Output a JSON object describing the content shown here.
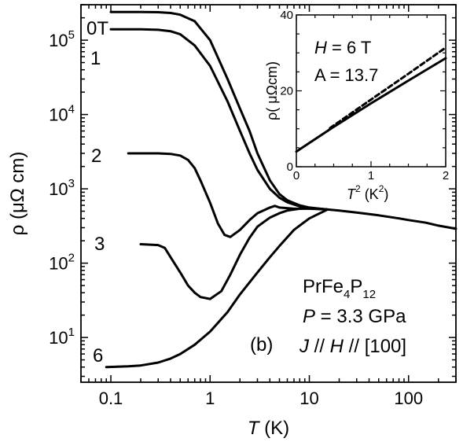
{
  "chart_data": [
    {
      "type": "line",
      "xlabel_var": "T",
      "xlabel_unit": "(K)",
      "ylabel": "ρ (μΩ cm)",
      "xscale": "log",
      "yscale": "log",
      "xlim": [
        0.05,
        300
      ],
      "ylim": [
        2.5,
        300000
      ],
      "x_ticks": [
        0.1,
        1,
        10,
        100
      ],
      "x_tick_labels": [
        "0.1",
        "1",
        "10",
        "100"
      ],
      "y_ticks": [
        10,
        100,
        1000,
        10000,
        100000
      ],
      "y_tick_labels": [
        {
          "base": "10",
          "exp": "1"
        },
        {
          "base": "10",
          "exp": "2"
        },
        {
          "base": "10",
          "exp": "3"
        },
        {
          "base": "10",
          "exp": "4"
        },
        {
          "base": "10",
          "exp": "5"
        }
      ],
      "series": [
        {
          "name": "0T",
          "points": [
            [
              0.1,
              240000
            ],
            [
              0.2,
              240000
            ],
            [
              0.3,
              238000
            ],
            [
              0.4,
              232000
            ],
            [
              0.5,
              220000
            ],
            [
              0.7,
              180000
            ],
            [
              1.0,
              100000
            ],
            [
              1.5,
              30000
            ],
            [
              2.0,
              12000
            ],
            [
              2.5,
              6000
            ],
            [
              3.0,
              3000
            ],
            [
              4.0,
              1300
            ],
            [
              5.0,
              850
            ],
            [
              6.0,
              700
            ],
            [
              8.0,
              600
            ],
            [
              10,
              560
            ],
            [
              15,
              530
            ]
          ]
        },
        {
          "name": "1",
          "points": [
            [
              0.1,
              140000
            ],
            [
              0.2,
              140000
            ],
            [
              0.3,
              138000
            ],
            [
              0.4,
              132000
            ],
            [
              0.5,
              120000
            ],
            [
              0.7,
              85000
            ],
            [
              1.0,
              45000
            ],
            [
              1.5,
              15000
            ],
            [
              2.0,
              6000
            ],
            [
              2.5,
              3000
            ],
            [
              3.0,
              1800
            ],
            [
              4.0,
              1000
            ],
            [
              5.0,
              760
            ],
            [
              6.0,
              660
            ],
            [
              8.0,
              580
            ],
            [
              10,
              550
            ],
            [
              15,
              530
            ]
          ]
        },
        {
          "name": "2",
          "points": [
            [
              0.15,
              3000
            ],
            [
              0.3,
              3000
            ],
            [
              0.4,
              2950
            ],
            [
              0.5,
              2800
            ],
            [
              0.6,
              2450
            ],
            [
              0.7,
              1900
            ],
            [
              0.8,
              1300
            ],
            [
              1.0,
              650
            ],
            [
              1.2,
              340
            ],
            [
              1.4,
              240
            ],
            [
              1.6,
              225
            ],
            [
              2.0,
              280
            ],
            [
              2.5,
              380
            ],
            [
              3.0,
              470
            ],
            [
              4.0,
              560
            ],
            [
              4.5,
              590
            ],
            [
              5.0,
              560
            ],
            [
              7,
              540
            ],
            [
              10,
              540
            ],
            [
              15,
              530
            ]
          ]
        },
        {
          "name": "3",
          "points": [
            [
              0.2,
              180
            ],
            [
              0.3,
              175
            ],
            [
              0.35,
              160
            ],
            [
              0.4,
              120
            ],
            [
              0.5,
              75
            ],
            [
              0.6,
              50
            ],
            [
              0.7,
              40
            ],
            [
              0.8,
              35
            ],
            [
              1.0,
              33
            ],
            [
              1.3,
              42
            ],
            [
              1.6,
              70
            ],
            [
              2.0,
              130
            ],
            [
              2.5,
              220
            ],
            [
              3.0,
              310
            ],
            [
              4.0,
              410
            ],
            [
              5.0,
              470
            ],
            [
              6.0,
              510
            ],
            [
              8.0,
              540
            ],
            [
              10,
              550
            ],
            [
              15,
              530
            ]
          ]
        },
        {
          "name": "6",
          "points": [
            [
              0.09,
              4.0
            ],
            [
              0.15,
              4.1
            ],
            [
              0.2,
              4.2
            ],
            [
              0.3,
              4.6
            ],
            [
              0.4,
              5.2
            ],
            [
              0.5,
              6.0
            ],
            [
              0.7,
              8.0
            ],
            [
              1.0,
              12
            ],
            [
              1.5,
              22
            ],
            [
              2.0,
              38
            ],
            [
              3.0,
              75
            ],
            [
              4.0,
              120
            ],
            [
              5.0,
              170
            ],
            [
              7.0,
              280
            ],
            [
              10,
              400
            ],
            [
              15,
              520
            ]
          ]
        },
        {
          "name": "",
          "points": [
            [
              15,
              530
            ],
            [
              20,
              510
            ],
            [
              30,
              480
            ],
            [
              50,
              440
            ],
            [
              80,
              400
            ],
            [
              100,
              380
            ],
            [
              150,
              350
            ],
            [
              200,
              320
            ],
            [
              300,
              290
            ]
          ]
        }
      ],
      "curve_labels": [
        "0T",
        "1",
        "2",
        "3",
        "6"
      ],
      "annotations": {
        "sample": {
          "base": "PrFe",
          "sub1": "4",
          "mid": "P",
          "sub2": "12"
        },
        "pressure": {
          "var": "P",
          "rest": " = 3.3 GPa"
        },
        "panel": "(b)",
        "geometry": {
          "v1": "J",
          "s1": " // ",
          "v2": "H",
          "s2": " // [100]"
        }
      }
    },
    {
      "type": "line",
      "xlabel_var": "T",
      "xlabel_sup": "2",
      "xlabel_unit_pre": " (K",
      "xlabel_unit_sup": "2",
      "xlabel_unit_post": ")",
      "ylabel": "ρ( μΩcm)",
      "xlim": [
        0,
        2
      ],
      "ylim": [
        0,
        40
      ],
      "x_ticks": [
        0,
        1,
        2
      ],
      "x_tick_labels": [
        "0",
        "1",
        "2"
      ],
      "y_ticks": [
        0,
        20,
        40
      ],
      "y_tick_labels": [
        "0",
        "20",
        "40"
      ],
      "series": [
        {
          "name": "",
          "style": "solid",
          "points": [
            [
              0,
              4
            ],
            [
              0.5,
              10.5
            ],
            [
              1.0,
              16.7
            ],
            [
              1.5,
              22.7
            ],
            [
              2.0,
              28.6
            ]
          ]
        },
        {
          "name": "",
          "style": "dashed",
          "points": [
            [
              0.45,
              10.2
            ],
            [
              1.0,
              17.7
            ],
            [
              1.5,
              24.5
            ],
            [
              2.0,
              31.4
            ]
          ]
        }
      ],
      "annotations": {
        "field": {
          "var": "H",
          "rest": " = 6 T"
        },
        "coef": "A = 13.7"
      }
    }
  ]
}
